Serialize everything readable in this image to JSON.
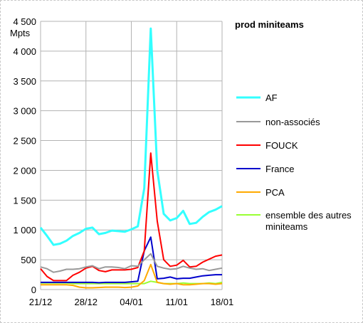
{
  "chart_data": {
    "type": "line",
    "title": "prod miniteams",
    "ylabel": "Mpts",
    "ylim": [
      0,
      4500
    ],
    "y_ticks": [
      "0",
      "500",
      "1 000",
      "1 500",
      "2 000",
      "2 500",
      "3 000",
      "3 500",
      "4 000",
      "4 500"
    ],
    "x_tick_labels": [
      "21/12",
      "28/12",
      "04/01",
      "11/01",
      "18/01"
    ],
    "x_tick_dates": [
      "21/12",
      "28/12",
      "04/01",
      "11/01",
      "18/01"
    ],
    "x": [
      "21/12",
      "22/12",
      "23/12",
      "24/12",
      "25/12",
      "26/12",
      "27/12",
      "28/12",
      "29/12",
      "30/12",
      "31/12",
      "01/01",
      "02/01",
      "03/01",
      "04/01",
      "05/01",
      "06/01",
      "07/01",
      "08/01",
      "09/01",
      "10/01",
      "11/01",
      "12/01",
      "13/01",
      "14/01",
      "15/01",
      "16/01",
      "17/01",
      "18/01"
    ],
    "grid": true,
    "legend_position": "right",
    "series": [
      {
        "name": "AF",
        "color": "#33ffff",
        "values": [
          1040,
          900,
          750,
          770,
          820,
          900,
          950,
          1020,
          1040,
          930,
          950,
          990,
          980,
          970,
          1010,
          1060,
          1700,
          4380,
          2000,
          1270,
          1160,
          1200,
          1320,
          1100,
          1120,
          1220,
          1300,
          1340,
          1400
        ]
      },
      {
        "name": "non-associés",
        "color": "#999999",
        "values": [
          380,
          350,
          290,
          310,
          340,
          340,
          350,
          380,
          400,
          350,
          380,
          380,
          370,
          350,
          400,
          390,
          500,
          600,
          390,
          360,
          340,
          350,
          390,
          360,
          340,
          350,
          320,
          340,
          360
        ]
      },
      {
        "name": "FOUCK",
        "color": "#ff0000",
        "values": [
          350,
          220,
          150,
          150,
          150,
          240,
          290,
          360,
          390,
          320,
          300,
          330,
          330,
          330,
          340,
          370,
          650,
          2290,
          1150,
          500,
          390,
          410,
          490,
          380,
          390,
          460,
          510,
          560,
          580
        ]
      },
      {
        "name": "France",
        "color": "#0000cc",
        "values": [
          120,
          120,
          120,
          120,
          120,
          120,
          120,
          120,
          120,
          115,
          120,
          120,
          120,
          120,
          130,
          140,
          650,
          880,
          180,
          190,
          210,
          180,
          190,
          190,
          210,
          230,
          240,
          250,
          250
        ]
      },
      {
        "name": "PCA",
        "color": "#ffaa00",
        "values": [
          80,
          80,
          80,
          80,
          80,
          70,
          40,
          30,
          30,
          35,
          40,
          40,
          40,
          35,
          40,
          60,
          150,
          420,
          120,
          100,
          90,
          100,
          80,
          80,
          90,
          100,
          100,
          90,
          100
        ]
      },
      {
        "name": "ensemble des autres miniteams",
        "color": "#99ff33",
        "values": [
          110,
          110,
          110,
          110,
          110,
          100,
          100,
          100,
          100,
          100,
          100,
          100,
          100,
          100,
          100,
          100,
          100,
          140,
          120,
          100,
          100,
          100,
          110,
          100,
          100,
          100,
          110,
          100,
          120
        ]
      }
    ]
  }
}
